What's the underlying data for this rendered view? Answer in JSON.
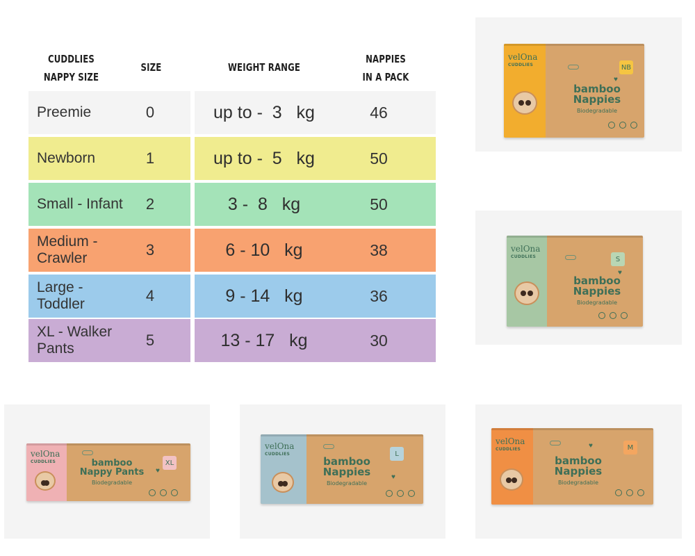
{
  "headers": {
    "col1": [
      "CUDDLIES",
      "NAPPY SIZE"
    ],
    "col2": "SIZE",
    "col3": "WEIGHT RANGE",
    "col4": [
      "NAPPIES",
      "IN A PACK"
    ]
  },
  "rows": [
    {
      "name": "Preemie",
      "size": "0",
      "weight": "up to -  3   kg",
      "count": "46",
      "color": "#f4f4f4"
    },
    {
      "name": "Newborn",
      "size": "1",
      "weight": "up to -  5   kg",
      "count": "50",
      "color": "#f0ec8f"
    },
    {
      "name": "Small - Infant",
      "size": "2",
      "weight": "3 -  8   kg",
      "count": "50",
      "color": "#a4e3b8"
    },
    {
      "name": "Medium - Crawler",
      "size": "3",
      "weight": "6 - 10   kg",
      "count": "38",
      "color": "#f8a270"
    },
    {
      "name": "Large - Toddler",
      "size": "4",
      "weight": "9 - 14   kg",
      "count": "36",
      "color": "#9ccbeb"
    },
    {
      "name": "XL - Walker Pants",
      "size": "5",
      "weight": "13 - 17   kg",
      "count": "30",
      "color": "#c9acd4"
    }
  ],
  "products": [
    {
      "brand": "velOna",
      "brand_sub": "CUDDLIES",
      "title_1": "bamboo",
      "title_2": "Nappies",
      "subtitle": "Biodegradable",
      "size_tag": "NB",
      "strip_color": "#f2ad2e",
      "tag_color": "#f5c542"
    },
    {
      "brand": "velOna",
      "brand_sub": "CUDDLIES",
      "title_1": "bamboo",
      "title_2": "Nappies",
      "subtitle": "Biodegradable",
      "size_tag": "S",
      "strip_color": "#a7c7a4",
      "tag_color": "#b9d6b4"
    },
    {
      "brand": "velOna",
      "brand_sub": "CUDDLIES",
      "title_1": "bamboo",
      "title_2": "Nappy Pants",
      "subtitle": "Biodegradable",
      "size_tag": "XL",
      "strip_color": "#efb1b4",
      "tag_color": "#f2c2c4"
    },
    {
      "brand": "velOna",
      "brand_sub": "CUDDLIES",
      "title_1": "bamboo",
      "title_2": "Nappies",
      "subtitle": "Biodegradable",
      "size_tag": "L",
      "strip_color": "#a5c2cc",
      "tag_color": "#b6d3dc"
    },
    {
      "brand": "velOna",
      "brand_sub": "CUDDLIES",
      "title_1": "bamboo",
      "title_2": "Nappies",
      "subtitle": "Biodegradable",
      "size_tag": "M",
      "strip_color": "#f08f44",
      "tag_color": "#f4a660"
    }
  ]
}
